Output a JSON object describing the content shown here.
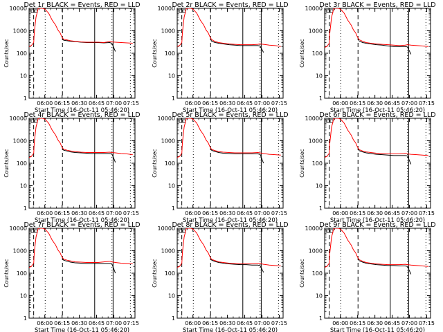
{
  "colors": {
    "events": "#000000",
    "lld": "#ff0000",
    "background": "#ffffff"
  },
  "chart_data": {
    "type": "line",
    "layout": "3x3 grid",
    "yscale": "log",
    "ylim": [
      1,
      10000
    ],
    "ylabel": "Counts/sec",
    "xlabel": "Start Time (16-Oct-11 05:46:20)",
    "xlim_minutes": [
      0,
      92
    ],
    "x_ticks": [
      "06:00",
      "06:15",
      "06:30",
      "06:45",
      "07:00",
      "07:15"
    ],
    "x_tick_minutes": [
      13.67,
      28.67,
      43.67,
      58.67,
      73.67,
      88.67
    ],
    "y_ticks": [
      "1",
      "10",
      "100",
      "1000",
      "10000"
    ],
    "y_tick_values": [
      1,
      10,
      100,
      1000,
      10000
    ],
    "legend": {
      "black": "Events",
      "red": "LLD"
    },
    "markers": {
      "dashed_minutes": [
        4,
        29
      ],
      "dotted_minutes": [
        14,
        72,
        88
      ],
      "solid_minutes": [
        57,
        73
      ]
    },
    "series_x": [
      0,
      2,
      4,
      4.5,
      6,
      8,
      12,
      14,
      17,
      20,
      23,
      25,
      27,
      28,
      29,
      30,
      33,
      36,
      40,
      45,
      50,
      55,
      60,
      65,
      70,
      72,
      75,
      80,
      85,
      90
    ],
    "panels": [
      {
        "title": "Det 1r BLACK = Events, RED = LLD",
        "events": [
          null,
          null,
          null,
          null,
          null,
          null,
          null,
          null,
          null,
          null,
          null,
          null,
          null,
          null,
          450,
          380,
          360,
          340,
          330,
          310,
          300,
          300,
          300,
          290,
          300,
          280,
          120,
          null,
          null,
          null
        ],
        "lld": [
          200,
          220,
          300,
          800,
          4000,
          10000,
          10000,
          9000,
          6000,
          3000,
          1800,
          1100,
          800,
          600,
          480,
          420,
          390,
          360,
          340,
          320,
          310,
          310,
          310,
          300,
          330,
          320,
          310,
          300,
          290,
          280
        ]
      },
      {
        "title": "Det 2r BLACK = Events, RED = LLD",
        "events": [
          null,
          null,
          null,
          null,
          null,
          null,
          null,
          null,
          null,
          null,
          null,
          null,
          null,
          null,
          420,
          340,
          300,
          280,
          260,
          240,
          230,
          220,
          220,
          220,
          220,
          210,
          110,
          null,
          null,
          null
        ],
        "lld": [
          200,
          220,
          300,
          800,
          4000,
          10000,
          10000,
          9000,
          6000,
          3000,
          1800,
          1100,
          800,
          600,
          480,
          400,
          330,
          300,
          280,
          260,
          250,
          240,
          240,
          240,
          250,
          260,
          250,
          230,
          220,
          200
        ]
      },
      {
        "title": "Det 3r BLACK = Events, RED = LLD",
        "events": [
          null,
          null,
          null,
          null,
          null,
          null,
          null,
          null,
          null,
          null,
          null,
          null,
          null,
          null,
          450,
          350,
          300,
          280,
          260,
          240,
          230,
          210,
          200,
          200,
          200,
          190,
          90,
          null,
          null,
          null
        ],
        "lld": [
          180,
          200,
          280,
          800,
          4000,
          10000,
          10000,
          9000,
          6000,
          3000,
          1800,
          1100,
          800,
          600,
          480,
          400,
          340,
          300,
          280,
          260,
          250,
          240,
          230,
          220,
          230,
          240,
          230,
          220,
          210,
          200
        ]
      },
      {
        "title": "Det 4r BLACK = Events, RED = LLD",
        "events": [
          null,
          null,
          null,
          null,
          null,
          null,
          null,
          null,
          null,
          null,
          null,
          null,
          null,
          null,
          450,
          380,
          350,
          320,
          300,
          290,
          280,
          270,
          270,
          270,
          270,
          260,
          110,
          null,
          null,
          null
        ],
        "lld": [
          180,
          200,
          280,
          800,
          4000,
          10000,
          10000,
          9000,
          6000,
          3000,
          1800,
          1100,
          800,
          600,
          480,
          420,
          380,
          350,
          330,
          310,
          300,
          300,
          300,
          300,
          310,
          300,
          290,
          270,
          260,
          240
        ]
      },
      {
        "title": "Det 5r BLACK = Events, RED = LLD",
        "events": [
          null,
          null,
          null,
          null,
          null,
          null,
          null,
          null,
          null,
          null,
          null,
          null,
          null,
          null,
          450,
          370,
          330,
          300,
          280,
          270,
          260,
          260,
          260,
          260,
          260,
          250,
          100,
          null,
          null,
          null
        ],
        "lld": [
          180,
          200,
          280,
          800,
          4000,
          10000,
          10000,
          9000,
          6000,
          3000,
          1800,
          1100,
          800,
          600,
          480,
          410,
          360,
          330,
          310,
          300,
          290,
          290,
          290,
          290,
          300,
          290,
          270,
          250,
          240,
          230
        ]
      },
      {
        "title": "Det 6r BLACK = Events, RED = LLD",
        "events": [
          null,
          null,
          null,
          null,
          null,
          null,
          null,
          null,
          null,
          null,
          null,
          null,
          null,
          null,
          450,
          360,
          320,
          290,
          270,
          250,
          240,
          230,
          220,
          220,
          220,
          210,
          90,
          null,
          null,
          null
        ],
        "lld": [
          180,
          200,
          280,
          800,
          4000,
          10000,
          10000,
          9000,
          6000,
          3000,
          1800,
          1100,
          800,
          600,
          480,
          400,
          350,
          320,
          300,
          280,
          270,
          260,
          260,
          260,
          270,
          260,
          250,
          240,
          230,
          220
        ]
      },
      {
        "title": "Det 7r BLACK = Events, RED = LLD",
        "events": [
          null,
          null,
          null,
          null,
          null,
          null,
          null,
          null,
          null,
          null,
          null,
          null,
          null,
          null,
          450,
          380,
          340,
          310,
          290,
          280,
          270,
          270,
          270,
          270,
          270,
          260,
          100,
          null,
          null,
          null
        ],
        "lld": [
          180,
          200,
          280,
          800,
          4000,
          10000,
          10000,
          9000,
          6000,
          3000,
          1800,
          1100,
          800,
          600,
          500,
          420,
          380,
          350,
          320,
          310,
          300,
          300,
          300,
          320,
          340,
          320,
          300,
          280,
          270,
          260
        ]
      },
      {
        "title": "Det 8r BLACK = Events, RED = LLD",
        "events": [
          null,
          null,
          null,
          null,
          null,
          null,
          null,
          null,
          null,
          null,
          null,
          null,
          null,
          null,
          450,
          380,
          330,
          300,
          280,
          260,
          250,
          240,
          240,
          230,
          230,
          220,
          110,
          null,
          null,
          null
        ],
        "lld": [
          180,
          200,
          280,
          800,
          4000,
          10000,
          10000,
          9000,
          6000,
          3000,
          1800,
          1100,
          800,
          600,
          480,
          410,
          360,
          320,
          300,
          280,
          270,
          260,
          260,
          260,
          270,
          270,
          250,
          230,
          220,
          210
        ]
      },
      {
        "title": "Det 9r BLACK = Events, RED = LLD",
        "events": [
          null,
          null,
          null,
          null,
          null,
          null,
          null,
          null,
          null,
          null,
          null,
          null,
          null,
          null,
          450,
          360,
          310,
          280,
          260,
          240,
          230,
          220,
          220,
          210,
          210,
          200,
          90,
          null,
          null,
          null
        ],
        "lld": [
          180,
          200,
          280,
          800,
          4000,
          10000,
          10000,
          9000,
          6000,
          3000,
          1800,
          1100,
          800,
          600,
          480,
          400,
          340,
          300,
          280,
          260,
          250,
          240,
          240,
          240,
          250,
          240,
          230,
          220,
          210,
          200
        ]
      }
    ]
  }
}
